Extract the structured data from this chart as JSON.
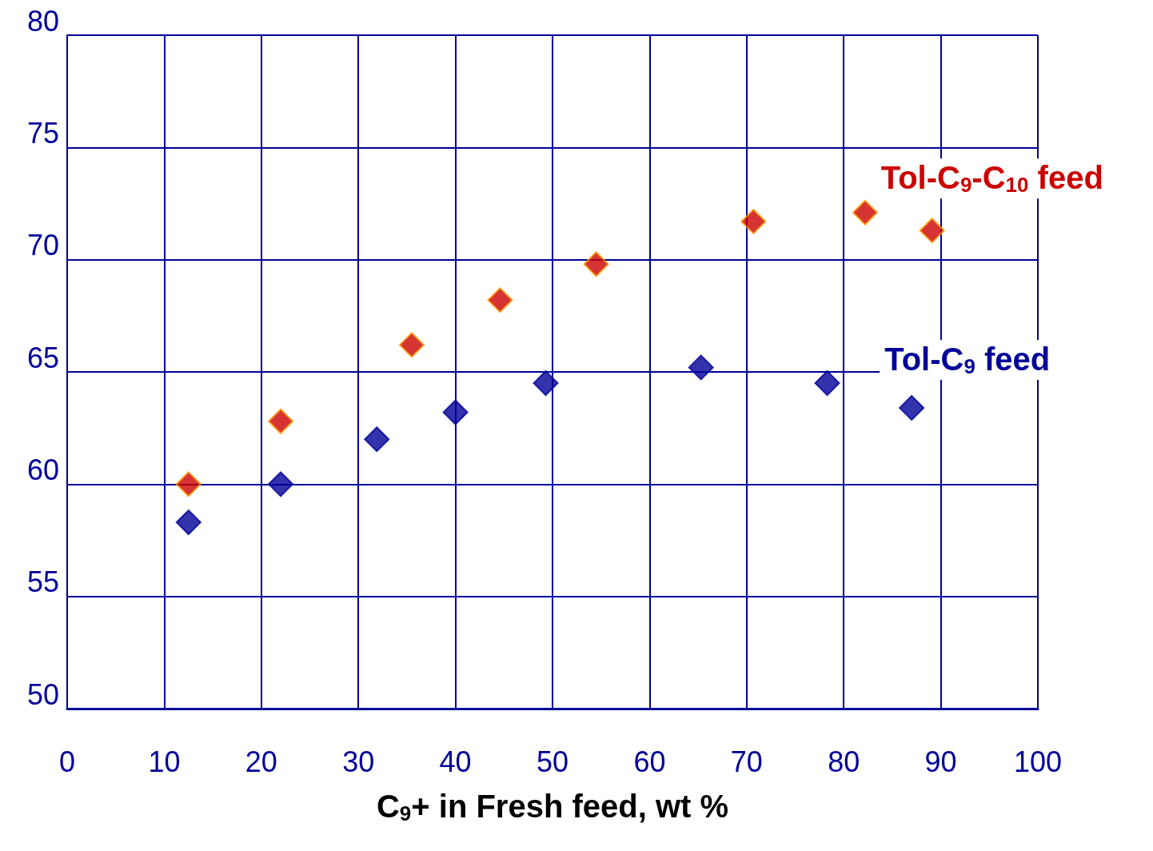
{
  "chart_data": {
    "type": "scatter",
    "xlabel": "C$_{9}$+ in Fresh feed, wt %",
    "xlim": [
      0,
      100
    ],
    "xticks": [
      0,
      10,
      20,
      30,
      40,
      50,
      60,
      70,
      80,
      90,
      100
    ],
    "ylim": [
      50,
      80
    ],
    "yticks": [
      50,
      55,
      60,
      65,
      70,
      75,
      80
    ],
    "grid": true,
    "legend": false,
    "marker": "diamond",
    "series": [
      {
        "name": "Tol-C$_{9}$-C$_{10}$ feed",
        "color": "#cc0000",
        "x": [
          12.5,
          22.0,
          35.5,
          44.6,
          54.5,
          70.7,
          82.2,
          89.1
        ],
        "values": [
          60.0,
          62.8,
          66.2,
          68.2,
          69.8,
          71.7,
          72.1,
          71.3
        ]
      },
      {
        "name": "Tol-C$_{9}$ feed",
        "color": "#000099",
        "x": [
          12.5,
          22.0,
          31.9,
          40.0,
          49.3,
          65.3,
          78.3,
          87.0
        ],
        "values": [
          58.3,
          60.0,
          62.0,
          63.2,
          64.5,
          65.2,
          64.5,
          63.4
        ]
      }
    ]
  }
}
